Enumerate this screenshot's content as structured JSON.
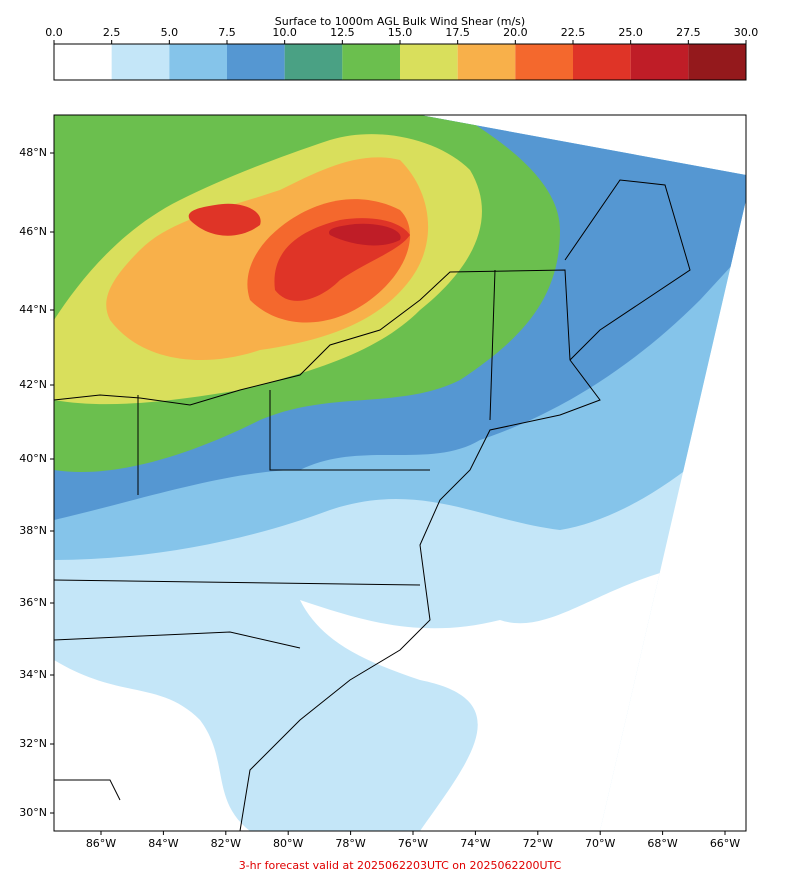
{
  "colorbar": {
    "title": "Surface to 1000m AGL Bulk Wind Shear (m/s)",
    "ticks": [
      {
        "value": 0,
        "label": "0.0"
      },
      {
        "value": 2.5,
        "label": "2.5"
      },
      {
        "value": 5,
        "label": "5.0"
      },
      {
        "value": 7.5,
        "label": "7.5"
      },
      {
        "value": 10,
        "label": "10.0"
      },
      {
        "value": 12.5,
        "label": "12.5"
      },
      {
        "value": 15,
        "label": "15.0"
      },
      {
        "value": 17.5,
        "label": "17.5"
      },
      {
        "value": 20,
        "label": "20.0"
      },
      {
        "value": 22.5,
        "label": "22.5"
      },
      {
        "value": 25,
        "label": "25.0"
      },
      {
        "value": 27.5,
        "label": "27.5"
      },
      {
        "value": 30,
        "label": "30.0"
      }
    ],
    "colors": [
      "#ffffff",
      "#c4e6f8",
      "#85c4ea",
      "#5597d2",
      "#4aa184",
      "#6bbf4e",
      "#d9df5c",
      "#f8b04a",
      "#f4682d",
      "#df3427",
      "#bf1d27",
      "#94191c"
    ]
  },
  "map": {
    "lat_labels": [
      "48°N",
      "46°N",
      "44°N",
      "42°N",
      "40°N",
      "38°N",
      "36°N",
      "34°N",
      "32°N",
      "30°N"
    ],
    "lon_labels": [
      "86°W",
      "84°W",
      "82°W",
      "80°W",
      "78°W",
      "76°W",
      "74°W",
      "72°W",
      "70°W",
      "68°W",
      "66°W"
    ]
  },
  "footer": "3-hr forecast valid at 2025062203UTC on 2025062200UTC"
}
